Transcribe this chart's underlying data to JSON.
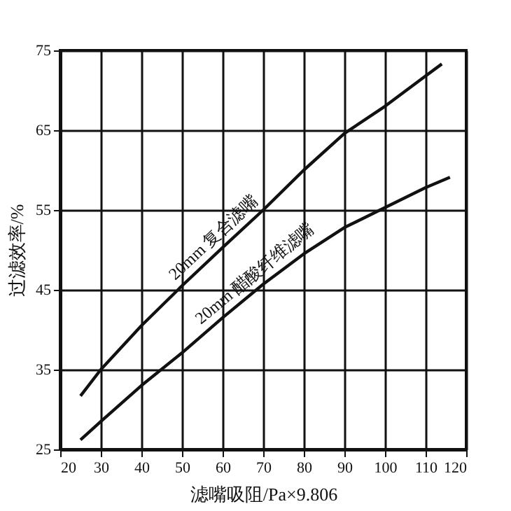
{
  "chart_data": {
    "type": "line",
    "xlabel": "滤嘴吸阻/Pa×9.806",
    "ylabel": "过滤效率/%",
    "xlim": [
      20,
      120
    ],
    "xticks": [
      20,
      30,
      40,
      50,
      60,
      70,
      80,
      90,
      100,
      110,
      120
    ],
    "ylim": [
      25,
      75
    ],
    "yticks": [
      25,
      35,
      45,
      55,
      65,
      75
    ],
    "grid": true,
    "series": [
      {
        "color": "#111111",
        "x": [
          25,
          30,
          40,
          50,
          60,
          70,
          80,
          90,
          100,
          110,
          114
        ],
        "values": [
          31.7,
          35,
          40.5,
          45.5,
          50.3,
          55,
          60,
          64.6,
          68,
          71.8,
          73.3
        ]
      },
      {
        "color": "#111111",
        "x": [
          25,
          30,
          40,
          50,
          60,
          70,
          80,
          90,
          100,
          110,
          116
        ],
        "values": [
          26.2,
          28.5,
          33,
          37.1,
          41.5,
          45.7,
          49.5,
          52.8,
          55.3,
          57.8,
          59.1
        ]
      }
    ],
    "annotations": [
      {
        "text": "20mm 复合滤嘴",
        "x": 60,
        "y": 50.3
      },
      {
        "text": "20mm 醋酸纤维滤嘴",
        "x": 70,
        "y": 45.7
      }
    ]
  }
}
